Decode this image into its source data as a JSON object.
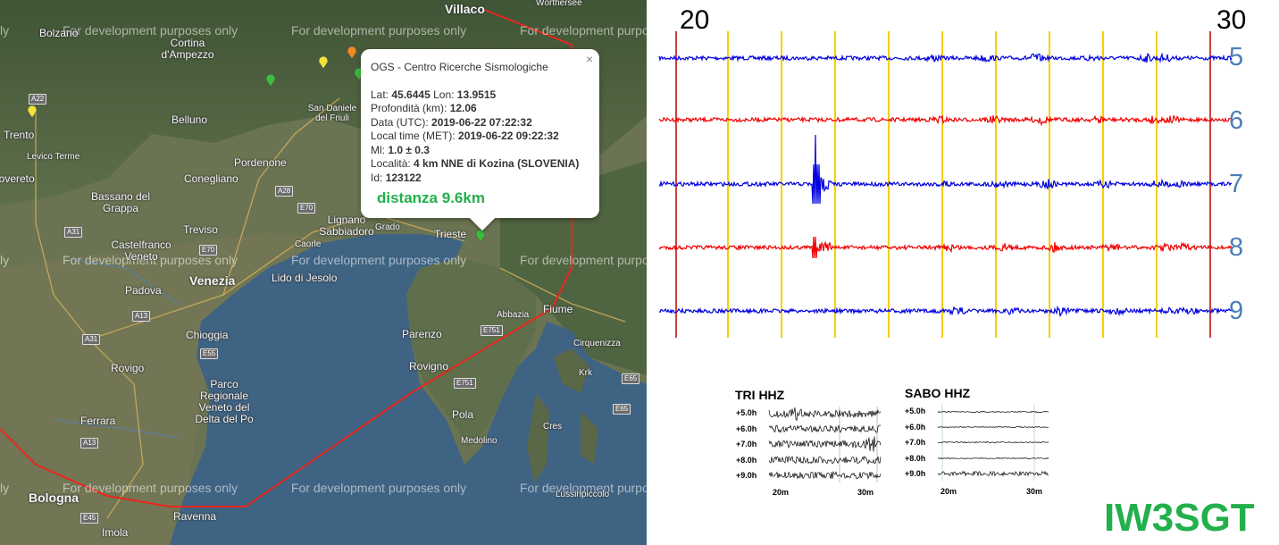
{
  "map": {
    "watermark": "For development purposes only",
    "places": [
      {
        "name": "Villaco",
        "cls": "big"
      },
      {
        "name": "Wörthersee",
        "cls": "small"
      },
      {
        "name": "Bolzano",
        "cls": ""
      },
      {
        "name": "Cortina d'Ampezzo",
        "cls": ""
      },
      {
        "name": "Trento",
        "cls": ""
      },
      {
        "name": "Belluno",
        "cls": ""
      },
      {
        "name": "Levico Terme",
        "cls": "small"
      },
      {
        "name": "Rovereto",
        "cls": ""
      },
      {
        "name": "Pordenone",
        "cls": ""
      },
      {
        "name": "Conegliano",
        "cls": ""
      },
      {
        "name": "San Daniele del Friuli",
        "cls": "small"
      },
      {
        "name": "Bassano del Grappa",
        "cls": ""
      },
      {
        "name": "Treviso",
        "cls": ""
      },
      {
        "name": "Castelfranco Veneto",
        "cls": ""
      },
      {
        "name": "Lignano Sabbiadoro",
        "cls": ""
      },
      {
        "name": "Grado",
        "cls": "small"
      },
      {
        "name": "Trieste",
        "cls": ""
      },
      {
        "name": "Caorle",
        "cls": "small"
      },
      {
        "name": "Padova",
        "cls": ""
      },
      {
        "name": "Venezia",
        "cls": "big"
      },
      {
        "name": "Lido di Jesolo",
        "cls": ""
      },
      {
        "name": "Abbazia",
        "cls": "small"
      },
      {
        "name": "Fiume",
        "cls": ""
      },
      {
        "name": "Parenzo",
        "cls": ""
      },
      {
        "name": "Cirquenizza",
        "cls": "small"
      },
      {
        "name": "Chioggia",
        "cls": ""
      },
      {
        "name": "Rovigo",
        "cls": ""
      },
      {
        "name": "Rovigno",
        "cls": ""
      },
      {
        "name": "Krk",
        "cls": "small"
      },
      {
        "name": "Parco Regionale Veneto del Delta del Po",
        "cls": ""
      },
      {
        "name": "Ferrara",
        "cls": ""
      },
      {
        "name": "Pola",
        "cls": ""
      },
      {
        "name": "Cres",
        "cls": "small"
      },
      {
        "name": "Medolino",
        "cls": "small"
      },
      {
        "name": "Bologna",
        "cls": "big"
      },
      {
        "name": "Ravenna",
        "cls": ""
      },
      {
        "name": "Imola",
        "cls": ""
      },
      {
        "name": "Lussinpiccolo",
        "cls": "small"
      }
    ],
    "roads": [
      "A22",
      "A28",
      "E70",
      "A31",
      "E70",
      "A13",
      "A31",
      "E55",
      "A13",
      "E45",
      "E751",
      "E751",
      "E65",
      "E65"
    ]
  },
  "popup": {
    "title": "OGS - Centro Ricerche Sismologiche",
    "lat_label": "Lat:",
    "lat": "45.6445",
    "lon_label": "Lon:",
    "lon": "13.9515",
    "depth_label": "Profondità (km):",
    "depth": "12.06",
    "date_label": "Data (UTC):",
    "date": "2019-06-22 07:22:32",
    "local_label": "Local time (MET):",
    "local": "2019-06-22 09:22:32",
    "ml_label": "Ml:",
    "ml": "1.0 ± 0.3",
    "loc_label": "Località:",
    "loc": "4 km NNE di Kozina (SLOVENIA)",
    "id_label": "Id:",
    "id": "123122",
    "distance": "distanza 9.6km",
    "close": "×"
  },
  "seismo": {
    "axis_left": "20",
    "axis_right": "30",
    "traces": [
      {
        "hour": "5",
        "color": "#0000e0"
      },
      {
        "hour": "6",
        "color": "#f00000"
      },
      {
        "hour": "7",
        "color": "#0000e0"
      },
      {
        "hour": "8",
        "color": "#f00000"
      },
      {
        "hour": "9",
        "color": "#0000e0"
      }
    ],
    "mini": [
      {
        "title": "TRI HHZ",
        "labels": [
          "+5.0h",
          "+6.0h",
          "+7.0h",
          "+8.0h",
          "+9.0h"
        ],
        "xlabels": [
          "20m",
          "30m"
        ]
      },
      {
        "title": "SABO HHZ",
        "labels": [
          "+5.0h",
          "+6.0h",
          "+7.0h",
          "+8.0h",
          "+9.0h"
        ],
        "xlabels": [
          "20m",
          "30m"
        ]
      }
    ],
    "callsign": "IW3SGT"
  },
  "colors": {
    "callsign": "#22b04c",
    "hour": "#4a7fb5",
    "grid_yellow": "#f5d000",
    "grid_red": "#c00000"
  }
}
